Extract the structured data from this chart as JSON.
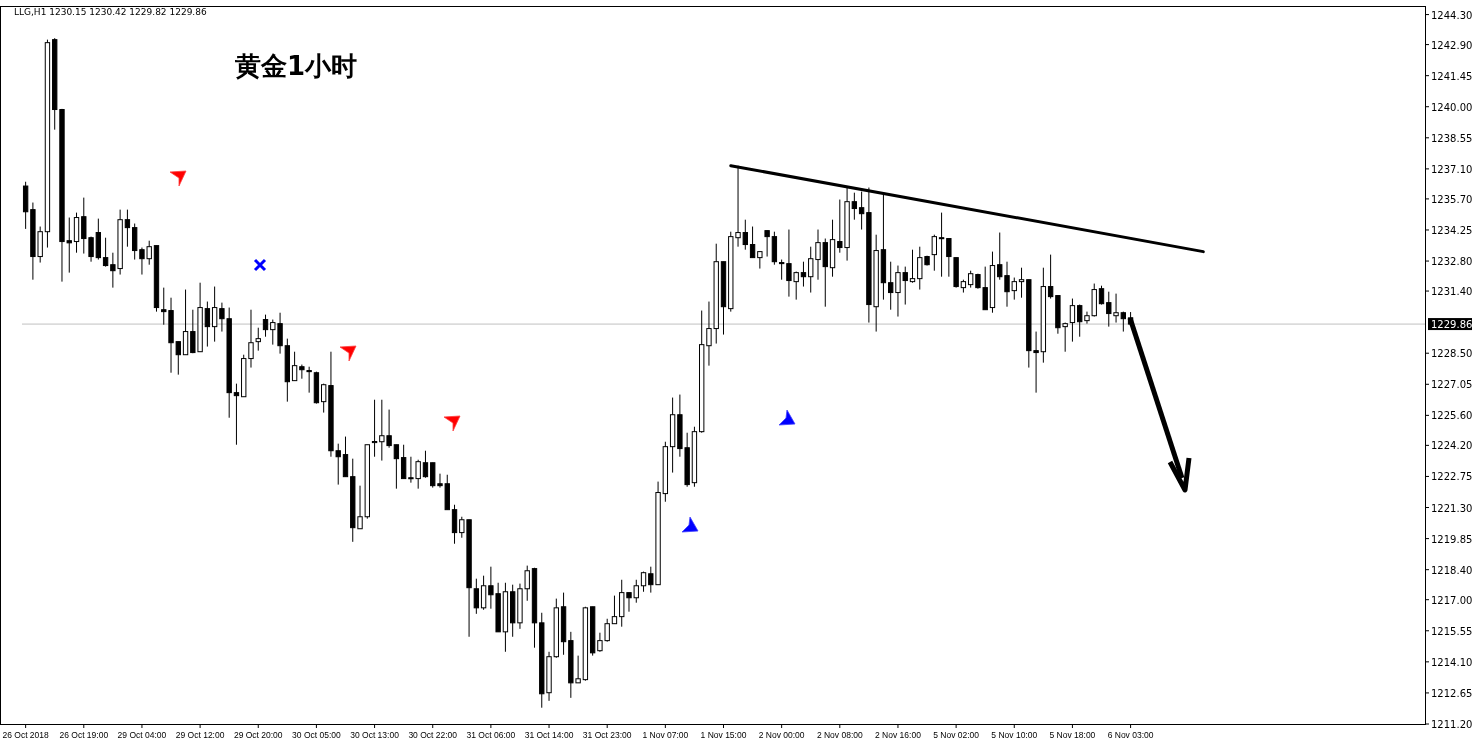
{
  "chart_data": {
    "type": "candlestick",
    "title": "黄金1小时",
    "annotations": [
      "LLG,H1  1230.15 1230.42 1229.82 1229.86"
    ],
    "categories": [
      "26 Oct 2018",
      null,
      null,
      null,
      null,
      null,
      null,
      null,
      "26 Oct 19:00",
      null,
      null,
      null,
      null,
      null,
      null,
      null,
      "29 Oct 04:00",
      null,
      null,
      null,
      null,
      null,
      null,
      null,
      "29 Oct 12:00",
      null,
      null,
      null,
      null,
      null,
      null,
      null,
      "29 Oct 20:00",
      null,
      null,
      null,
      null,
      null,
      null,
      null,
      "30 Oct 05:00",
      null,
      null,
      null,
      null,
      null,
      null,
      null,
      "30 Oct 13:00",
      null,
      null,
      null,
      null,
      null,
      null,
      null,
      "30 Oct 22:00",
      null,
      null,
      null,
      null,
      null,
      null,
      null,
      "31 Oct 06:00",
      null,
      null,
      null,
      null,
      null,
      null,
      null,
      "31 Oct 14:00",
      null,
      null,
      null,
      null,
      null,
      null,
      null,
      "31 Oct 23:00",
      null,
      null,
      null,
      null,
      null,
      null,
      null,
      "1 Nov 07:00",
      null,
      null,
      null,
      null,
      null,
      null,
      null,
      "1 Nov 15:00",
      null,
      null,
      null,
      null,
      null,
      null,
      null,
      "2 Nov 00:00",
      null,
      null,
      null,
      null,
      null,
      null,
      null,
      "2 Nov 08:00",
      null,
      null,
      null,
      null,
      null,
      null,
      null,
      "2 Nov 16:00",
      null,
      null,
      null,
      null,
      null,
      null,
      null,
      "5 Nov 02:00",
      null,
      null,
      null,
      null,
      null,
      null,
      null,
      "5 Nov 10:00",
      null,
      null,
      null,
      null,
      null,
      null,
      null,
      "5 Nov 18:00",
      null,
      null,
      null,
      null,
      null,
      null,
      null,
      "6 Nov 03:00",
      null,
      null,
      null,
      null,
      null,
      null,
      null,
      null,
      null,
      null,
      null,
      null,
      null,
      null,
      null,
      null,
      null,
      null,
      null,
      null,
      null,
      null,
      null,
      null,
      null,
      null,
      null,
      null,
      null,
      null,
      null,
      null,
      null,
      null,
      null,
      null,
      null,
      null,
      null,
      null
    ],
    "ohlc": [
      [
        1236.3,
        1236.5,
        1234.3,
        1235.1
      ],
      [
        1235.2,
        1235.53,
        1231.93,
        1233.01
      ],
      [
        1233.01,
        1234.41,
        1232.73,
        1234.17
      ],
      [
        1234.17,
        1243.13,
        1233.43,
        1242.99
      ],
      [
        1243.13,
        1243.2,
        1238.93,
        1239.87
      ],
      [
        1239.87,
        1239.9,
        1231.84,
        1233.71
      ],
      [
        1233.75,
        1234.83,
        1232.26,
        1233.65
      ],
      [
        1233.71,
        1235.06,
        1233.19,
        1234.83
      ],
      [
        1234.87,
        1235.76,
        1233.15,
        1233.85
      ],
      [
        1233.89,
        1233.94,
        1232.77,
        1233.01
      ],
      [
        1234.13,
        1234.78,
        1232.87,
        1232.96
      ],
      [
        1232.96,
        1233.89,
        1232.54,
        1232.59
      ],
      [
        1232.63,
        1233.19,
        1231.56,
        1232.35
      ],
      [
        1232.45,
        1235.2,
        1232.17,
        1234.73
      ],
      [
        1234.73,
        1235.2,
        1233.47,
        1234.36
      ],
      [
        1234.36,
        1234.55,
        1232.87,
        1233.29
      ],
      [
        1233.33,
        1233.43,
        1232.17,
        1232.91
      ],
      [
        1232.91,
        1233.75,
        1232.63,
        1233.47
      ],
      [
        1233.52,
        1233.52,
        1230.44,
        1230.63
      ],
      [
        1230.53,
        1231.56,
        1229.83,
        1230.44
      ],
      [
        1230.49,
        1231.09,
        1227.59,
        1228.99
      ],
      [
        1229.04,
        1229.04,
        1227.5,
        1228.43
      ],
      [
        1228.43,
        1231.47,
        1228.43,
        1229.51
      ],
      [
        1229.51,
        1230.53,
        1228.5,
        1228.53
      ],
      [
        1228.57,
        1231.79,
        1228.57,
        1230.63
      ],
      [
        1230.58,
        1230.91,
        1228.81,
        1229.74
      ],
      [
        1229.74,
        1231.61,
        1229.04,
        1230.63
      ],
      [
        1230.58,
        1230.86,
        1229.51,
        1230.11
      ],
      [
        1230.11,
        1230.63,
        1225.49,
        1226.66
      ],
      [
        1226.66,
        1227.08,
        1224.23,
        1226.52
      ],
      [
        1226.47,
        1228.43,
        1226.47,
        1228.25
      ],
      [
        1228.25,
        1230.53,
        1227.83,
        1228.99
      ],
      [
        1229.04,
        1229.69,
        1228.62,
        1229.18
      ],
      [
        1230.07,
        1230.3,
        1229.27,
        1229.6
      ],
      [
        1229.6,
        1230.07,
        1228.9,
        1229.93
      ],
      [
        1229.88,
        1230.39,
        1228.48,
        1228.85
      ],
      [
        1228.85,
        1229.18,
        1226.24,
        1227.17
      ],
      [
        1227.22,
        1228.57,
        1227.22,
        1227.92
      ],
      [
        1227.87,
        1227.97,
        1227.31,
        1227.73
      ],
      [
        1227.69,
        1227.87,
        1226.66,
        1227.64
      ],
      [
        1227.59,
        1227.64,
        1226.15,
        1226.19
      ],
      [
        1226.24,
        1227.08,
        1225.73,
        1227.03
      ],
      [
        1226.99,
        1228.57,
        1223.67,
        1223.95
      ],
      [
        1223.95,
        1224.28,
        1222.37,
        1223.67
      ],
      [
        1223.77,
        1224.61,
        1222.74,
        1222.74
      ],
      [
        1222.74,
        1223.58,
        1219.7,
        1220.36
      ],
      [
        1220.31,
        1222.32,
        1220.31,
        1220.87
      ],
      [
        1220.87,
        1224.23,
        1220.78,
        1224.23
      ],
      [
        1224.33,
        1226.33,
        1223.67,
        1224.38
      ],
      [
        1224.37,
        1226.33,
        1223.49,
        1224.65
      ],
      [
        1224.65,
        1225.87,
        1224.09,
        1224.19
      ],
      [
        1224.23,
        1224.23,
        1222.18,
        1223.58
      ],
      [
        1223.63,
        1224.23,
        1222.65,
        1222.65
      ],
      [
        1222.69,
        1223.67,
        1222.46,
        1222.65
      ],
      [
        1222.65,
        1223.53,
        1222.18,
        1223.44
      ],
      [
        1223.39,
        1223.95,
        1222.69,
        1222.74
      ],
      [
        1223.39,
        1223.39,
        1222.23,
        1222.32
      ],
      [
        1222.41,
        1222.88,
        1222.23,
        1222.32
      ],
      [
        1222.41,
        1222.83,
        1221.2,
        1221.2
      ],
      [
        1221.2,
        1221.43,
        1219.61,
        1220.13
      ],
      [
        1220.13,
        1220.87,
        1219.89,
        1220.73
      ],
      [
        1220.73,
        1220.73,
        1215.27,
        1217.56
      ],
      [
        1217.51,
        1217.98,
        1216.34,
        1216.62
      ],
      [
        1216.62,
        1218.12,
        1216.53,
        1217.65
      ],
      [
        1217.65,
        1218.54,
        1216.58,
        1217.23
      ],
      [
        1217.28,
        1217.79,
        1215.5,
        1215.5
      ],
      [
        1215.5,
        1217.79,
        1214.57,
        1217.37
      ],
      [
        1217.37,
        1217.7,
        1215.27,
        1215.92
      ],
      [
        1215.92,
        1217.75,
        1215.64,
        1217.51
      ],
      [
        1217.51,
        1218.59,
        1216.95,
        1218.35
      ],
      [
        1218.45,
        1218.49,
        1214.76,
        1215.92
      ],
      [
        1215.92,
        1216.39,
        1211.96,
        1212.61
      ],
      [
        1212.66,
        1214.57,
        1212.28,
        1214.34
      ],
      [
        1214.34,
        1217.05,
        1214.29,
        1216.62
      ],
      [
        1216.67,
        1217.33,
        1214.43,
        1215.04
      ],
      [
        1215.09,
        1215.5,
        1212.42,
        1213.12
      ],
      [
        1213.12,
        1214.39,
        1213.12,
        1213.31
      ],
      [
        1213.27,
        1216.67,
        1213.22,
        1216.62
      ],
      [
        1216.67,
        1216.67,
        1214.39,
        1214.52
      ],
      [
        1214.62,
        1215.46,
        1214.57,
        1215.09
      ],
      [
        1215.09,
        1216.11,
        1215.04,
        1215.88
      ],
      [
        1215.88,
        1217.19,
        1215.88,
        1216.21
      ],
      [
        1216.21,
        1217.93,
        1215.74,
        1217.33
      ],
      [
        1217.33,
        1217.33,
        1216.44,
        1217.09
      ],
      [
        1217.09,
        1217.93,
        1216.86,
        1217.65
      ],
      [
        1217.65,
        1218.31,
        1217.37,
        1218.26
      ],
      [
        1218.21,
        1218.54,
        1217.33,
        1217.7
      ],
      [
        1217.7,
        1222.51,
        1217.7,
        1222.0
      ],
      [
        1221.95,
        1224.37,
        1221.57,
        1224.14
      ],
      [
        1224.14,
        1226.43,
        1222.93,
        1225.63
      ],
      [
        1225.63,
        1226.57,
        1223.67,
        1224.05
      ],
      [
        1224.09,
        1224.79,
        1222.27,
        1222.37
      ],
      [
        1222.46,
        1225.07,
        1222.27,
        1224.84
      ],
      [
        1224.84,
        1230.49,
        1224.79,
        1228.9
      ],
      [
        1228.85,
        1230.91,
        1227.92,
        1229.65
      ],
      [
        1229.65,
        1233.61,
        1228.95,
        1232.77
      ],
      [
        1232.77,
        1232.77,
        1229.37,
        1230.67
      ],
      [
        1230.58,
        1234.17,
        1230.44,
        1233.94
      ],
      [
        1233.89,
        1237.25,
        1233.47,
        1234.13
      ],
      [
        1234.13,
        1234.73,
        1233.33,
        1233.57
      ],
      [
        1233.57,
        1234.41,
        1232.96,
        1232.96
      ],
      [
        1232.96,
        1233.24,
        1232.45,
        1233.24
      ],
      [
        1234.22,
        1234.22,
        1233.01,
        1233.94
      ],
      [
        1233.94,
        1234.17,
        1232.63,
        1232.77
      ],
      [
        1232.73,
        1232.87,
        1231.93,
        1232.68
      ],
      [
        1232.68,
        1234.27,
        1231.14,
        1231.89
      ],
      [
        1231.84,
        1232.31,
        1231.0,
        1232.26
      ],
      [
        1232.26,
        1232.77,
        1231.61,
        1232.07
      ],
      [
        1232.07,
        1233.47,
        1231.33,
        1232.91
      ],
      [
        1232.87,
        1234.27,
        1231.93,
        1233.66
      ],
      [
        1233.66,
        1233.85,
        1230.67,
        1232.54
      ],
      [
        1232.49,
        1234.73,
        1232.07,
        1233.8
      ],
      [
        1233.71,
        1235.67,
        1233.19,
        1233.43
      ],
      [
        1233.43,
        1236.23,
        1232.82,
        1235.57
      ],
      [
        1235.57,
        1235.99,
        1234.73,
        1235.25
      ],
      [
        1235.29,
        1236.04,
        1234.27,
        1235.01
      ],
      [
        1235.06,
        1236.23,
        1229.93,
        1230.77
      ],
      [
        1230.67,
        1234.03,
        1229.51,
        1233.29
      ],
      [
        1233.33,
        1235.9,
        1231.0,
        1231.79
      ],
      [
        1231.79,
        1232.77,
        1230.53,
        1231.33
      ],
      [
        1231.33,
        1232.59,
        1230.21,
        1232.26
      ],
      [
        1232.26,
        1232.54,
        1230.77,
        1231.89
      ],
      [
        1231.84,
        1233.33,
        1231.79,
        1231.98
      ],
      [
        1231.98,
        1233.47,
        1231.47,
        1232.96
      ],
      [
        1233.01,
        1233.05,
        1232.59,
        1232.63
      ],
      [
        1233.1,
        1234.03,
        1232.35,
        1233.94
      ],
      [
        1233.89,
        1235.06,
        1232.07,
        1233.85
      ],
      [
        1233.85,
        1233.85,
        1232.07,
        1233.01
      ],
      [
        1232.96,
        1232.96,
        1231.56,
        1231.61
      ],
      [
        1231.56,
        1231.93,
        1231.33,
        1231.84
      ],
      [
        1231.7,
        1232.35,
        1231.56,
        1232.21
      ],
      [
        1232.17,
        1232.21,
        1231.51,
        1231.56
      ],
      [
        1231.56,
        1232.54,
        1230.53,
        1230.53
      ],
      [
        1230.63,
        1233.24,
        1230.39,
        1232.59
      ],
      [
        1232.63,
        1234.13,
        1231.93,
        1232.07
      ],
      [
        1232.12,
        1232.77,
        1230.67,
        1231.37
      ],
      [
        1231.42,
        1232.03,
        1231.0,
        1231.84
      ],
      [
        1231.84,
        1232.49,
        1231.09,
        1231.93
      ],
      [
        1231.93,
        1231.93,
        1227.83,
        1228.62
      ],
      [
        1228.62,
        1229.51,
        1226.66,
        1228.53
      ],
      [
        1228.57,
        1232.49,
        1228.06,
        1231.61
      ],
      [
        1231.61,
        1233.1,
        1231.05,
        1231.14
      ],
      [
        1231.19,
        1231.19,
        1229.41,
        1229.69
      ],
      [
        1229.74,
        1229.93,
        1228.57,
        1229.88
      ],
      [
        1229.93,
        1231.05,
        1229.04,
        1230.72
      ],
      [
        1230.72,
        1230.77,
        1229.27,
        1229.97
      ],
      [
        1230.02,
        1230.44,
        1229.88,
        1230.25
      ],
      [
        1230.25,
        1231.75,
        1230.21,
        1231.47
      ],
      [
        1231.51,
        1231.65,
        1230.77,
        1230.81
      ],
      [
        1230.86,
        1231.37,
        1229.74,
        1230.35
      ],
      [
        1230.25,
        1231.28,
        1229.93,
        1230.39
      ],
      [
        1230.39,
        1230.44,
        1229.51,
        1230.11
      ],
      [
        1230.15,
        1230.42,
        1229.82,
        1229.86
      ],
      null,
      null,
      null,
      null,
      null,
      null,
      null,
      null,
      null,
      null,
      null,
      null,
      null,
      null,
      null,
      null,
      null,
      null,
      null,
      null,
      null,
      null,
      null,
      null,
      null,
      null,
      null,
      null,
      null,
      null,
      null,
      null,
      null,
      null,
      null,
      null,
      null,
      null,
      null,
      null
    ],
    "series": [
      {
        "type": "line",
        "color": "#000000",
        "values": [
          null,
          null,
          null,
          null,
          null,
          null,
          null,
          null,
          null,
          null,
          null,
          null,
          null,
          null,
          null,
          null,
          null,
          null,
          null,
          null,
          null,
          null,
          null,
          null,
          null,
          null,
          null,
          null,
          null,
          null,
          null,
          null,
          null,
          null,
          null,
          null,
          null,
          null,
          null,
          null,
          null,
          null,
          null,
          null,
          null,
          null,
          null,
          null,
          null,
          null,
          null,
          null,
          null,
          null,
          null,
          null,
          null,
          null,
          null,
          null,
          null,
          null,
          null,
          null,
          null,
          null,
          null,
          null,
          null,
          null,
          null,
          null,
          null,
          null,
          null,
          null,
          null,
          null,
          null,
          null,
          null,
          null,
          null,
          null,
          null,
          null,
          null,
          null,
          null,
          null,
          null,
          null,
          null,
          null,
          null,
          null,
          null,
          1237.25,
          null,
          null,
          null,
          null,
          null,
          null,
          null,
          null,
          null,
          null,
          null,
          null,
          null,
          null,
          null,
          null,
          null,
          null,
          null,
          null,
          null,
          null,
          null,
          null,
          null,
          null,
          null,
          null,
          null,
          null,
          null,
          null,
          null,
          null,
          null,
          null,
          null,
          null,
          null,
          null,
          null,
          null,
          null,
          null,
          null,
          null,
          null,
          null,
          null,
          null,
          null,
          null,
          null,
          null,
          null,
          null,
          null,
          null,
          null,
          null,
          null,
          null,
          null,
          null,
          1233.24,
          null,
          null,
          null,
          null,
          null,
          null,
          null,
          null,
          null,
          null,
          null,
          null,
          null,
          null,
          null,
          null,
          null,
          null,
          null,
          null,
          null,
          null,
          null,
          null,
          null,
          null,
          null,
          null,
          null,
          null
        ]
      }
    ],
    "ylim": [
      1211.2,
      1244.7
    ],
    "yticks": [
      {
        "value": 1244.3,
        "label": "1244.30"
      },
      {
        "value": 1242.9,
        "label": "1242.90"
      },
      {
        "value": 1241.45,
        "label": "1241.45"
      },
      {
        "value": 1240,
        "label": "1240.00"
      },
      {
        "value": 1238.55,
        "label": "1238.55"
      },
      {
        "value": 1237.1,
        "label": "1237.10"
      },
      {
        "value": 1235.7,
        "label": "1235.70"
      },
      {
        "value": 1234.25,
        "label": "1234.25"
      },
      {
        "value": 1232.8,
        "label": "1232.80"
      },
      {
        "value": 1231.4,
        "label": "1231.40"
      },
      {
        "value": 1228.5,
        "label": "1228.50"
      },
      {
        "value": 1227.05,
        "label": "1227.05"
      },
      {
        "value": 1225.6,
        "label": "1225.60"
      },
      {
        "value": 1224.2,
        "label": "1224.20"
      },
      {
        "value": 1222.75,
        "label": "1222.75"
      },
      {
        "value": 1221.3,
        "label": "1221.30"
      },
      {
        "value": 1219.85,
        "label": "1219.85"
      },
      {
        "value": 1218.4,
        "label": "1218.40"
      },
      {
        "value": 1217,
        "label": "1217.00"
      },
      {
        "value": 1215.55,
        "label": "1215.55"
      },
      {
        "value": 1214.1,
        "label": "1214.10"
      },
      {
        "value": 1212.65,
        "label": "1212.65"
      },
      {
        "value": 1211.2,
        "label": "1211.20"
      }
    ],
    "ref_lines": [
      {
        "axis": "y",
        "value": 1229.86,
        "label": "1229.86",
        "color": "#c0c0c0"
      }
    ],
    "grid": false
  }
}
